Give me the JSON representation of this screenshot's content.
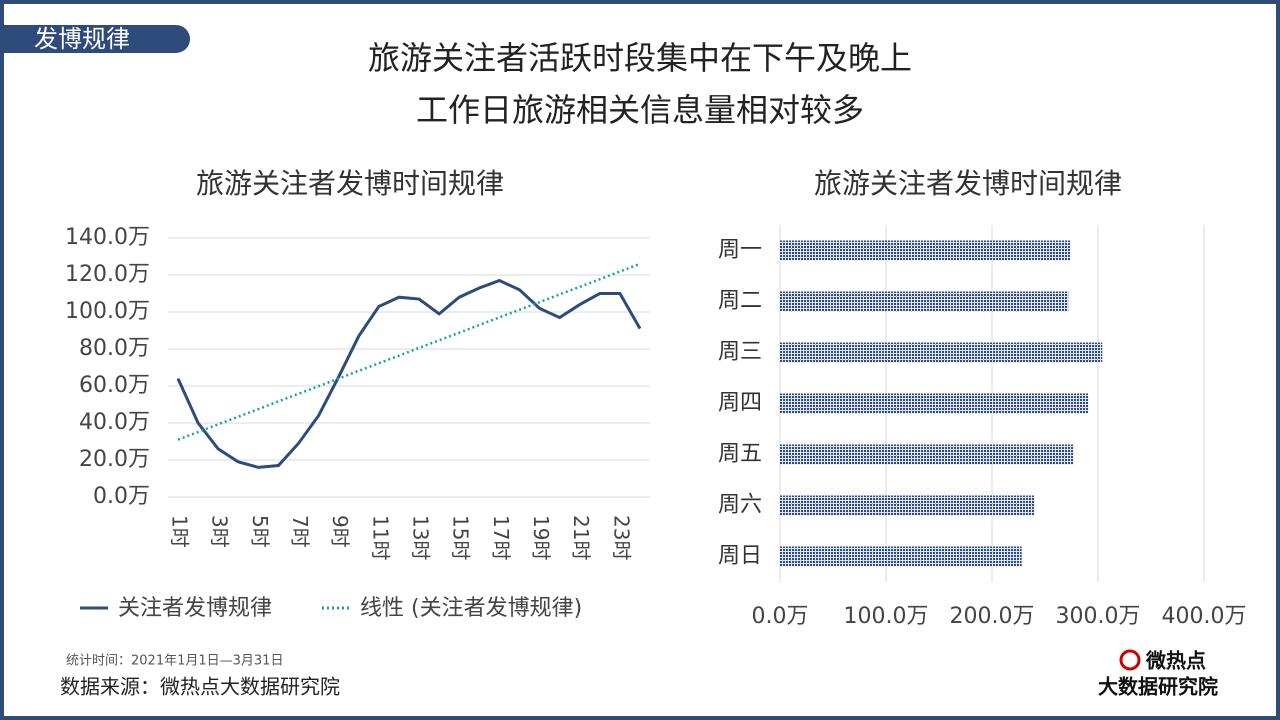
{
  "tag": "发博规律",
  "title_lines": [
    "旅游关注者活跃时段集中在下午及晚上",
    "工作日旅游相关信息量相对较多"
  ],
  "footnote": "统计时间：2021年1月1日—3月31日",
  "source": "数据来源：微热点大数据研究院",
  "logo": {
    "top": "微热点",
    "bottom": "大数据研究院"
  },
  "chart_data": [
    {
      "type": "line",
      "title": "旅游关注者发博时间规律",
      "categories": [
        "1时",
        null,
        "3时",
        null,
        "5时",
        null,
        "7时",
        null,
        "9时",
        null,
        "11时",
        null,
        "13时",
        null,
        "15时",
        null,
        "17时",
        null,
        "19时",
        null,
        "21时",
        null,
        "23时",
        null
      ],
      "series": [
        {
          "name": "关注者发博规律",
          "color": "#2f4b7c",
          "style": "solid",
          "values": [
            64,
            40,
            26,
            19,
            16,
            17,
            29,
            44,
            65,
            87,
            103,
            108,
            107,
            99,
            108,
            113,
            117,
            112,
            102,
            97,
            104,
            110,
            110,
            91
          ]
        },
        {
          "name": "线性 (关注者发博规律)",
          "color": "#1aa39a",
          "style": "dotted",
          "values": [
            31,
            35.1,
            39.3,
            43.4,
            47.5,
            51.7,
            55.8,
            59.9,
            64.0,
            68.2,
            72.3,
            76.4,
            80.6,
            84.7,
            88.8,
            93.0,
            97.1,
            101.2,
            105.3,
            109.5,
            113.6,
            117.7,
            121.9,
            126
          ]
        }
      ],
      "ylim": [
        0,
        140
      ],
      "yticks": [
        {
          "value": 0,
          "label": "0.0万"
        },
        {
          "value": 20,
          "label": "20.0万"
        },
        {
          "value": 40,
          "label": "40.0万"
        },
        {
          "value": 60,
          "label": "60.0万"
        },
        {
          "value": 80,
          "label": "80.0万"
        },
        {
          "value": 100,
          "label": "100.0万"
        },
        {
          "value": 120,
          "label": "120.0万"
        },
        {
          "value": 140,
          "label": "140.0万"
        }
      ],
      "grid": true,
      "legend": "bottom"
    },
    {
      "type": "barh",
      "title": "旅游关注者发博时间规律",
      "categories": [
        "周一",
        "周二",
        "周三",
        "周四",
        "周五",
        "周六",
        "周日"
      ],
      "values": [
        274,
        272,
        304,
        291,
        277,
        240,
        228
      ],
      "color": "#2f4b7c",
      "xlim": [
        0,
        400
      ],
      "xticks": [
        {
          "value": 0,
          "label": "0.0万"
        },
        {
          "value": 100,
          "label": "100.0万"
        },
        {
          "value": 200,
          "label": "200.0万"
        },
        {
          "value": 300,
          "label": "300.0万"
        },
        {
          "value": 400,
          "label": "400.0万"
        }
      ],
      "grid": true
    }
  ]
}
